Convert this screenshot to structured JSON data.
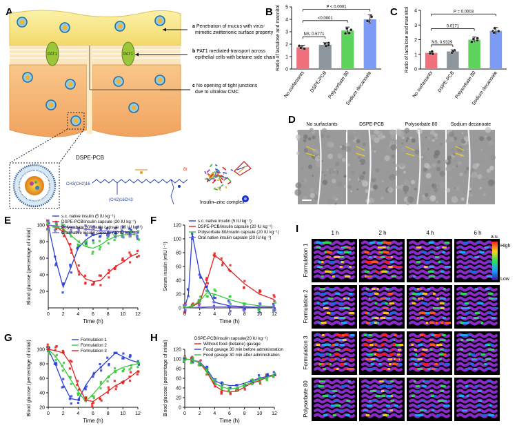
{
  "panels": {
    "A": "A",
    "B": "B",
    "C": "C",
    "D": "D",
    "E": "E",
    "F": "F",
    "G": "G",
    "H": "H",
    "I": "I"
  },
  "panelA": {
    "ann_a_key": "a",
    "ann_a_1": "Penetration of mucus with virus-",
    "ann_a_2": "mimetic zwitterionic surface property",
    "ann_b_key": "b",
    "ann_b_1": "PAT1 mediated-transport across",
    "ann_b_2": "epithelial cells with betaine side chain",
    "ann_c_key": "c",
    "ann_c_1": "No opening of tight junctions",
    "ann_c_2": "due to ultralow CMC",
    "transporter": "PAT1",
    "molecule_title": "DSPE-PCB",
    "formula_left": "CH3(CH2)16",
    "formula_tail": "(CH2)16CH3",
    "bromide": "Br",
    "complex_label": "Insulin–zinc complex"
  },
  "panelD": {
    "labels": [
      "No surfactants",
      "DSPE-PCB",
      "Polysorbate 80",
      "Sodium decanoate"
    ]
  },
  "panelI": {
    "times": [
      "1 h",
      "2 h",
      "4 h",
      "6 h"
    ],
    "rows": [
      "Formulation 1",
      "Formulation 2",
      "Formulation 3",
      "Polysorbate 80"
    ],
    "colorbar_unit": "a.u.",
    "colorbar_high": "High",
    "colorbar_low": "Low"
  },
  "chart_data": [
    {
      "panel": "B",
      "type": "bar",
      "ylabel": "Ratio of lactulose and mannitol",
      "categories": [
        "No surfactants",
        "DSPE-PCB",
        "Polysorbate 80",
        "Sodium decanoate"
      ],
      "values": [
        1.75,
        1.95,
        3.1,
        4.0
      ],
      "ylim": [
        0,
        5
      ],
      "yticks": [
        0,
        1,
        2,
        3,
        4,
        5
      ],
      "colors": [
        "#f0707c",
        "#8c969c",
        "#5fd45c",
        "#7d9bf5"
      ],
      "annotations": [
        "NS, 0.5771",
        "<0.0001",
        "P < 0.0001"
      ]
    },
    {
      "panel": "C",
      "type": "bar",
      "ylabel": "Ratio of lactulose and mannitol",
      "categories": [
        "No surfactants",
        "DSPE-PCB",
        "Polysorbate 80",
        "Sodium decanoate"
      ],
      "values": [
        1.1,
        1.2,
        2.0,
        2.6
      ],
      "ylim": [
        0,
        4
      ],
      "yticks": [
        0,
        1,
        2,
        3,
        4
      ],
      "colors": [
        "#f0707c",
        "#8c969c",
        "#5fd45c",
        "#7d9bf5"
      ],
      "annotations": [
        "NS, 0.9329",
        "0.0171",
        "P = 0.0003"
      ]
    },
    {
      "panel": "E",
      "type": "line",
      "xlabel": "Time (h)",
      "ylabel": "Blood glucose (percentage of initial)",
      "xlim": [
        0,
        12
      ],
      "ylim": [
        0,
        100
      ],
      "xticks": [
        0,
        2,
        4,
        6,
        8,
        10,
        12
      ],
      "yticks": [
        20,
        40,
        60,
        80,
        100
      ],
      "series": [
        {
          "name": "s.c. native insulin (5 IU kg⁻¹)",
          "color": "#2a3fd6",
          "x": [
            0,
            1,
            2,
            3,
            4,
            5,
            6,
            7,
            8,
            9,
            10,
            11,
            12
          ],
          "values": [
            100,
            58,
            25,
            48,
            72,
            82,
            88,
            90,
            90,
            92,
            92,
            91,
            90
          ]
        },
        {
          "name": "DSPE-PCB/insulin capsule (20 IU kg⁻¹)",
          "color": "#e02020",
          "x": [
            0,
            1,
            2,
            3,
            4,
            5,
            6,
            7,
            8,
            9,
            10,
            11,
            12
          ],
          "values": [
            100,
            98,
            92,
            72,
            45,
            35,
            32,
            33,
            42,
            50,
            55,
            62,
            66
          ]
        },
        {
          "name": "Polysorbate 80/insulin capsule (20 IU kg⁻¹)",
          "color": "#38c838",
          "x": [
            0,
            1,
            2,
            3,
            4,
            5,
            6,
            7,
            8,
            9,
            10,
            11,
            12
          ],
          "values": [
            100,
            98,
            95,
            88,
            80,
            74,
            72,
            76,
            82,
            86,
            88,
            89,
            88
          ]
        },
        {
          "name": "Oral native insulin capsule (20 IU kg⁻¹)",
          "color": "#7a6ad8",
          "x": [
            0,
            1,
            2,
            3,
            4,
            5,
            6,
            7,
            8,
            9,
            10,
            11,
            12
          ],
          "values": [
            100,
            99,
            98,
            97,
            96,
            95,
            94,
            93,
            93,
            92,
            92,
            92,
            92
          ]
        }
      ]
    },
    {
      "panel": "F",
      "type": "line",
      "xlabel": "Time (h)",
      "ylabel": "Serum insulin (mIU l⁻¹)",
      "xlim": [
        0,
        12
      ],
      "ylim": [
        0,
        120
      ],
      "xticks": [
        0,
        2,
        4,
        6,
        8,
        10,
        12
      ],
      "yticks": [
        0,
        20,
        40,
        60,
        80,
        100,
        120
      ],
      "series": [
        {
          "name": "s.c. native insulin (5 IU kg⁻¹)",
          "color": "#2a3fd6",
          "x": [
            0,
            0.5,
            1,
            2,
            3,
            4,
            6,
            8,
            10,
            12
          ],
          "values": [
            0,
            20,
            107,
            50,
            28,
            8,
            3,
            2,
            1,
            1
          ]
        },
        {
          "name": "DSPE-PCB/insulin capsule (20 IU kg⁻¹)",
          "color": "#e02020",
          "x": [
            0,
            1,
            2,
            3,
            4,
            5,
            6,
            8,
            10,
            12
          ],
          "values": [
            0,
            2,
            8,
            40,
            76,
            68,
            55,
            35,
            20,
            12
          ]
        },
        {
          "name": "Polysorbate 80/insulin capsule (20 IU kg⁻¹)",
          "color": "#38c838",
          "x": [
            0,
            1,
            2,
            3,
            4,
            6,
            8,
            10,
            12
          ],
          "values": [
            0,
            3,
            10,
            22,
            20,
            12,
            6,
            3,
            2
          ]
        },
        {
          "name": "Oral native insulin capsule (20 IU kg⁻¹)",
          "color": "#7a6ad8",
          "x": [
            0,
            2,
            4,
            6,
            8,
            10,
            12
          ],
          "values": [
            0,
            1,
            2,
            2,
            1,
            1,
            1
          ]
        }
      ]
    },
    {
      "panel": "G",
      "type": "line",
      "xlabel": "Time (h)",
      "ylabel": "Blood glucose (percentage of initial)",
      "xlim": [
        0,
        12
      ],
      "ylim": [
        20,
        100
      ],
      "xticks": [
        0,
        2,
        4,
        6,
        8,
        10,
        12
      ],
      "yticks": [
        20,
        40,
        60,
        80,
        100
      ],
      "series": [
        {
          "name": "Formulation 1",
          "color": "#2a3fd6",
          "x": [
            0,
            1,
            2,
            3,
            4,
            5,
            6,
            7,
            8,
            9,
            10,
            11,
            12
          ],
          "values": [
            100,
            78,
            52,
            32,
            30,
            50,
            65,
            75,
            85,
            95,
            90,
            85,
            82
          ]
        },
        {
          "name": "Formulation 2",
          "color": "#38c838",
          "x": [
            0,
            1,
            2,
            3,
            4,
            5,
            6,
            7,
            8,
            9,
            10,
            11,
            12
          ],
          "values": [
            100,
            90,
            75,
            58,
            42,
            28,
            38,
            50,
            62,
            70,
            75,
            78,
            80
          ]
        },
        {
          "name": "Formulation 3",
          "color": "#e02020",
          "x": [
            0,
            1,
            2,
            3,
            4,
            5,
            6,
            7,
            8,
            9,
            10,
            11,
            12
          ],
          "values": [
            100,
            98,
            95,
            80,
            50,
            30,
            28,
            35,
            42,
            50,
            55,
            62,
            70
          ]
        }
      ]
    },
    {
      "panel": "H",
      "type": "line",
      "title": "DSPE-PCB/insulin capsule(20 IU kg⁻¹)",
      "xlabel": "Time (h)",
      "ylabel": "Blood glucose (percentage of initial)",
      "xlim": [
        0,
        12
      ],
      "ylim": [
        0,
        120
      ],
      "xticks": [
        0,
        2,
        4,
        6,
        8,
        10,
        12
      ],
      "yticks": [
        0,
        20,
        40,
        60,
        80,
        100,
        120
      ],
      "series": [
        {
          "name": "Without food (betaine) gavage",
          "color": "#e02020",
          "x": [
            0,
            1,
            2,
            3,
            4,
            5,
            6,
            7,
            8,
            9,
            10,
            11,
            12
          ],
          "values": [
            100,
            98,
            92,
            72,
            45,
            35,
            32,
            33,
            42,
            50,
            55,
            62,
            66
          ]
        },
        {
          "name": "Food gavage 30 min before administration",
          "color": "#2a3fd6",
          "x": [
            0,
            1,
            2,
            3,
            4,
            5,
            6,
            7,
            8,
            9,
            10,
            11,
            12
          ],
          "values": [
            100,
            98,
            94,
            78,
            55,
            48,
            45,
            45,
            50,
            55,
            60,
            64,
            68
          ]
        },
        {
          "name": "Food gavage 30 min after administration",
          "color": "#38c838",
          "x": [
            0,
            1,
            2,
            3,
            4,
            5,
            6,
            7,
            8,
            9,
            10,
            11,
            12
          ],
          "values": [
            100,
            98,
            93,
            75,
            50,
            42,
            38,
            40,
            46,
            52,
            58,
            62,
            68
          ]
        }
      ]
    }
  ]
}
